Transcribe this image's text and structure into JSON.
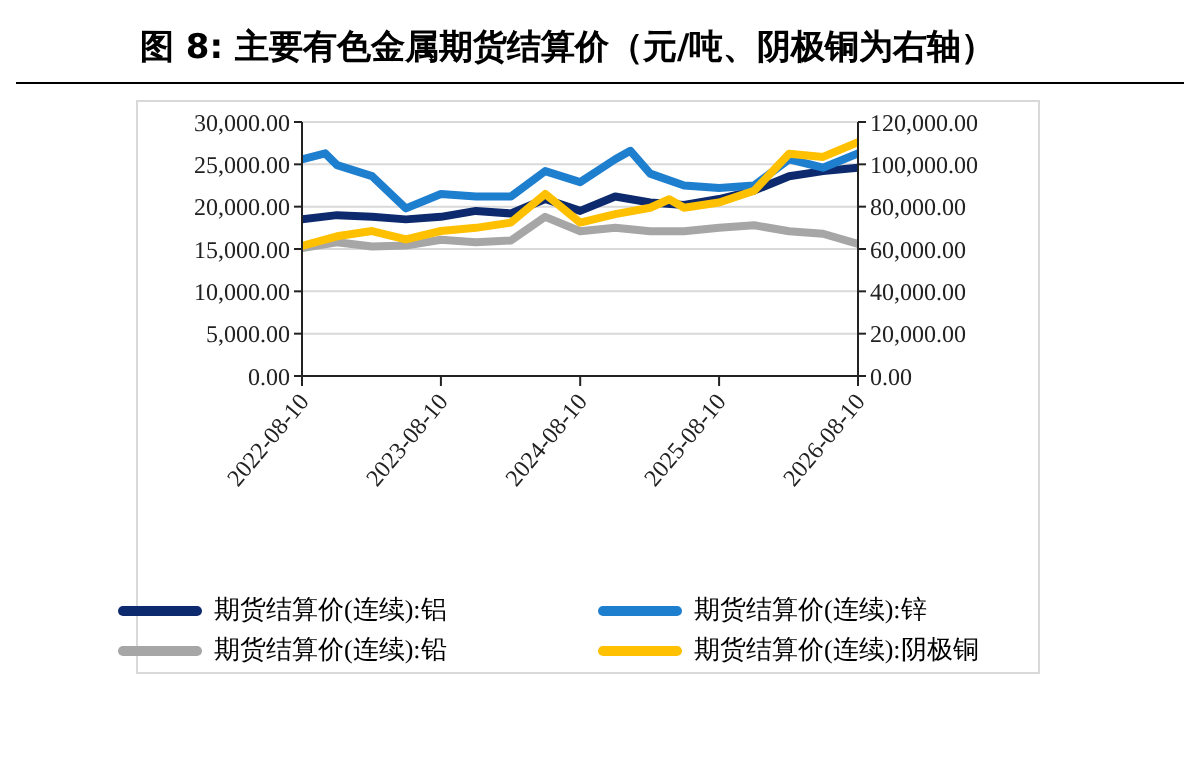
{
  "chart_data": {
    "type": "line",
    "title": "图 8:  主要有色金属期货结算价（元/吨、阴极铜为右轴）",
    "xlim": [
      "2022-08-10",
      "2026-08-10"
    ],
    "xticks": [
      "2022-08-10",
      "2023-08-10",
      "2024-08-10",
      "2025-08-10",
      "2026-08-10"
    ],
    "ylim": [
      0,
      30000
    ],
    "yticks": [
      {
        "value": 0,
        "label": "0.00"
      },
      {
        "value": 5000,
        "label": "5,000.00"
      },
      {
        "value": 10000,
        "label": "10,000.00"
      },
      {
        "value": 15000,
        "label": "15,000.00"
      },
      {
        "value": 20000,
        "label": "20,000.00"
      },
      {
        "value": 25000,
        "label": "25,000.00"
      },
      {
        "value": 30000,
        "label": "30,000.00"
      }
    ],
    "y2lim": [
      0,
      120000
    ],
    "y2ticks": [
      {
        "value": 0,
        "label": "0.00"
      },
      {
        "value": 20000,
        "label": "20,000.00"
      },
      {
        "value": 40000,
        "label": "40,000.00"
      },
      {
        "value": 60000,
        "label": "60,000.00"
      },
      {
        "value": 80000,
        "label": "80,000.00"
      },
      {
        "value": 100000,
        "label": "100,000.00"
      },
      {
        "value": 120000,
        "label": "120,000.00"
      }
    ],
    "grid": "y",
    "legend": "bottom",
    "marker": "none",
    "line_style": "solid",
    "series": [
      {
        "name": "期货结算价(连续):铝",
        "color": "#0e2a6e",
        "x": [
          "2022-08-10",
          "2022-11-10",
          "2023-02-10",
          "2023-05-10",
          "2023-08-10",
          "2023-11-10",
          "2024-02-10",
          "2024-05-10",
          "2024-08-10",
          "2024-11-10",
          "2025-02-10",
          "2025-05-10",
          "2025-08-10",
          "2025-11-10",
          "2026-02-10",
          "2026-05-10",
          "2026-08-10"
        ],
        "values": [
          18500,
          19000,
          18800,
          18500,
          18800,
          19500,
          19200,
          20900,
          19500,
          21200,
          20500,
          20200,
          20900,
          21900,
          23600,
          24200,
          24600
        ]
      },
      {
        "name": "期货结算价(连续):锌",
        "color": "#1f7fcf",
        "x": [
          "2022-08-10",
          "2022-10-10",
          "2022-11-10",
          "2023-02-10",
          "2023-05-10",
          "2023-08-10",
          "2023-11-10",
          "2024-02-10",
          "2024-05-10",
          "2024-08-10",
          "2024-11-10",
          "2024-12-20",
          "2025-02-10",
          "2025-05-10",
          "2025-08-10",
          "2025-11-10",
          "2026-02-10",
          "2026-05-10",
          "2026-08-10"
        ],
        "values": [
          25600,
          26300,
          24900,
          23600,
          19800,
          21500,
          21200,
          21200,
          24200,
          22900,
          25600,
          26600,
          23900,
          22500,
          22200,
          22500,
          25600,
          24600,
          26300
        ]
      },
      {
        "name": "期货结算价(连续):铅",
        "color": "#a6a6a6",
        "x": [
          "2022-08-10",
          "2022-11-10",
          "2023-02-10",
          "2023-05-10",
          "2023-08-10",
          "2023-11-10",
          "2024-02-10",
          "2024-05-10",
          "2024-08-10",
          "2024-11-10",
          "2025-02-10",
          "2025-05-10",
          "2025-08-10",
          "2025-11-10",
          "2026-02-10",
          "2026-05-10",
          "2026-08-10"
        ],
        "values": [
          15100,
          15800,
          15300,
          15400,
          16100,
          15800,
          16000,
          18800,
          17100,
          17500,
          17100,
          17100,
          17500,
          17800,
          17100,
          16800,
          15600
        ]
      },
      {
        "name": "期货结算价(连续):阴极铜",
        "color": "#ffc000",
        "axis": "y2",
        "x": [
          "2022-08-10",
          "2022-11-10",
          "2023-02-10",
          "2023-05-10",
          "2023-08-10",
          "2023-11-10",
          "2024-02-10",
          "2024-05-10",
          "2024-08-10",
          "2024-11-10",
          "2025-02-10",
          "2025-04-01",
          "2025-05-10",
          "2025-08-10",
          "2025-11-10",
          "2026-02-10",
          "2026-05-10",
          "2026-08-10"
        ],
        "values": [
          61500,
          66000,
          68500,
          64500,
          68500,
          70000,
          72500,
          86000,
          72500,
          76500,
          79500,
          83500,
          79500,
          82000,
          87500,
          105000,
          103500,
          110500
        ]
      }
    ]
  }
}
